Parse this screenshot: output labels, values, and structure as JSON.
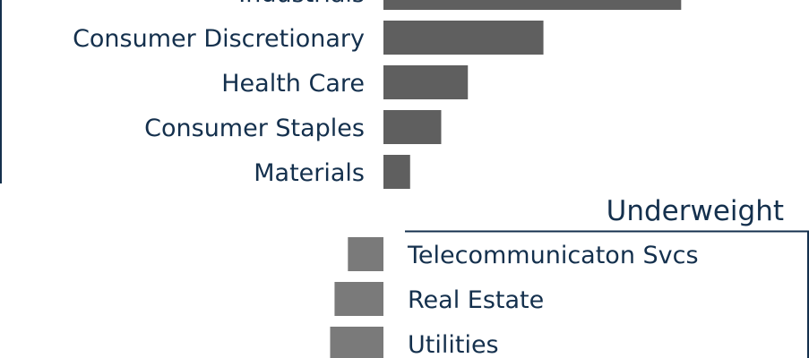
{
  "chart_data": {
    "type": "bar",
    "orientation": "horizontal",
    "colors": {
      "overweight": "#5f5f5f",
      "underweight": "#7a7a7a",
      "text": "#14304d",
      "frame": "#14304d"
    },
    "overweight": {
      "categories": [
        "Industrials",
        "Consumer Discretionary",
        "Health Care",
        "Consumer Staples",
        "Materials"
      ],
      "values": [
        6.7,
        3.6,
        1.9,
        1.3,
        0.6
      ]
    },
    "underweight": {
      "title": "Underweight",
      "categories": [
        "Telecommunicaton Svcs",
        "Real Estate",
        "Utilities"
      ],
      "values": [
        -0.8,
        -1.1,
        -1.2
      ]
    }
  }
}
